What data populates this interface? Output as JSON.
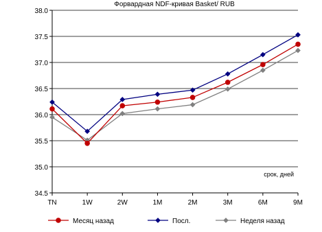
{
  "chart_data": {
    "type": "line",
    "title": "Форвардная NDF-кривая Basket/ RUB",
    "xlabel": "",
    "ylabel": "",
    "annotation": "срок, дней",
    "categories": [
      "TN",
      "1W",
      "2W",
      "1M",
      "2M",
      "3M",
      "6M",
      "9M"
    ],
    "ylim": [
      34.5,
      38.0
    ],
    "yticks": [
      "34.5",
      "35.0",
      "35.5",
      "36.0",
      "36.5",
      "37.0",
      "37.5",
      "38.0"
    ],
    "grid": "horizontal",
    "legend_position": "bottom",
    "series": [
      {
        "name": "Месяц назад",
        "color": "#c00000",
        "marker": "circle",
        "values": [
          36.11,
          35.45,
          36.17,
          36.24,
          36.33,
          36.62,
          36.96,
          37.35
        ]
      },
      {
        "name": "Посл.",
        "color": "#000080",
        "marker": "diamond",
        "values": [
          36.24,
          35.68,
          36.29,
          36.39,
          36.47,
          36.78,
          37.15,
          37.53
        ]
      },
      {
        "name": "Неделя назад",
        "color": "#808080",
        "marker": "diamond",
        "values": [
          35.95,
          35.51,
          36.02,
          36.11,
          36.19,
          36.49,
          36.85,
          37.23
        ]
      }
    ]
  }
}
